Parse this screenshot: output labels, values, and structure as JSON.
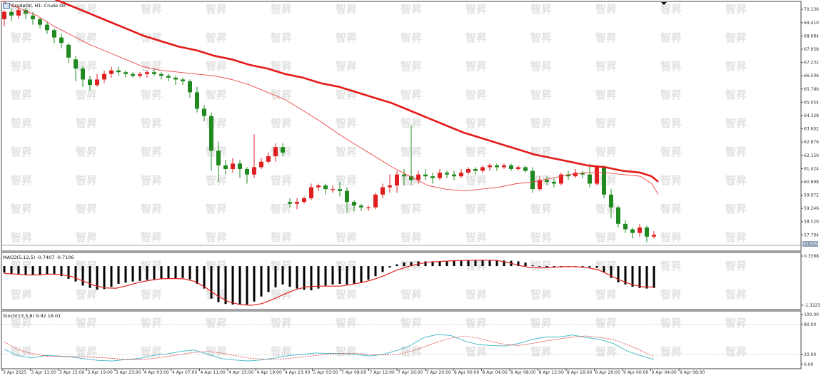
{
  "window": {
    "symbol_line": "CrudeOil, H1: Crude Oil",
    "macd_line": "MACD(5,12,5) -0.7407 -0.7106",
    "stoch_line": "Stoch(13,5,8) 9.92 16.01"
  },
  "watermark_text": "智昇",
  "colors": {
    "bull": "#e02020",
    "bear": "#208a20",
    "ma_slow": "#e41a1a",
    "ma_fast": "#ee4444",
    "macd_signal": "#e02020",
    "stoch_main": "#3cb8c8",
    "stoch_signal": "#e04040",
    "histogram": "#000000",
    "price_tag": "#8fa0b4"
  },
  "chart_data": [
    {
      "type": "candlestick",
      "title": "CrudeOil, H1: Crude Oil",
      "y_ticks": [
        "70.136",
        "69.410",
        "68.684",
        "67.958",
        "67.232",
        "66.506",
        "65.780",
        "65.054",
        "64.328",
        "63.602",
        "62.876",
        "62.150",
        "61.424",
        "60.698",
        "59.972",
        "59.246",
        "58.520",
        "57.794"
      ],
      "ylim": [
        57.3,
        70.3
      ],
      "current_price": "57.5?5",
      "x_ticks": [
        "3 Apr 2025",
        "3 Apr 11:00",
        "3 Apr 15:00",
        "3 Apr 19:00",
        "3 Apr 23:00",
        "4 Apr 03:00",
        "4 Apr 07:00",
        "4 Apr 11:00",
        "4 Apr 15:00",
        "4 Apr 19:00",
        "4 Apr 23:00",
        "5 Apr 03:00",
        "7 Apr 08:00",
        "7 Apr 12:00",
        "7 Apr 16:00",
        "7 Apr 20:00",
        "8 Apr 00:00",
        "8 Apr 04:00",
        "8 Apr 08:00",
        "8 Apr 12:00",
        "8 Apr 16:00",
        "8 Apr 20:00",
        "9 Apr 00:00",
        "9 Apr 04:00",
        "9 Apr 08:00"
      ],
      "candles": [
        [
          69.6,
          70.0,
          69.2,
          70.1
        ],
        [
          70.0,
          69.8,
          69.5,
          70.2
        ],
        [
          69.8,
          70.1,
          69.6,
          70.3
        ],
        [
          70.1,
          69.9,
          69.6,
          70.2
        ],
        [
          69.8,
          69.6,
          69.3,
          70.0
        ],
        [
          69.6,
          69.3,
          69.1,
          69.7
        ],
        [
          69.3,
          69.0,
          68.8,
          69.5
        ],
        [
          69.0,
          68.6,
          68.3,
          69.1
        ],
        [
          68.6,
          68.3,
          68.0,
          68.8
        ],
        [
          68.2,
          67.5,
          67.2,
          68.3
        ],
        [
          67.4,
          66.9,
          66.2,
          67.6
        ],
        [
          66.9,
          66.3,
          65.9,
          67.0
        ],
        [
          66.3,
          66.0,
          65.7,
          66.5
        ],
        [
          66.0,
          66.3,
          65.9,
          66.6
        ],
        [
          66.3,
          66.6,
          66.1,
          66.8
        ],
        [
          66.6,
          66.8,
          66.4,
          67.0
        ],
        [
          66.8,
          66.7,
          66.5,
          67.0
        ],
        [
          66.7,
          66.6,
          66.4,
          66.8
        ],
        [
          66.6,
          66.5,
          66.4,
          66.7
        ],
        [
          66.5,
          66.6,
          66.4,
          66.7
        ],
        [
          66.6,
          66.7,
          66.4,
          66.8
        ],
        [
          66.7,
          66.6,
          66.5,
          66.9
        ],
        [
          66.6,
          66.5,
          66.3,
          66.7
        ],
        [
          66.5,
          66.4,
          66.2,
          66.6
        ],
        [
          66.4,
          66.3,
          66.0,
          66.5
        ],
        [
          66.3,
          66.2,
          66.0,
          66.4
        ],
        [
          66.2,
          65.6,
          65.3,
          66.3
        ],
        [
          65.6,
          64.7,
          64.5,
          65.9
        ],
        [
          64.7,
          64.3,
          64.0,
          64.9
        ],
        [
          64.3,
          62.4,
          61.3,
          64.5
        ],
        [
          62.4,
          61.6,
          60.7,
          62.9
        ],
        [
          61.6,
          61.4,
          61.1,
          61.9
        ],
        [
          61.4,
          61.7,
          61.2,
          62.0
        ],
        [
          61.7,
          61.4,
          60.9,
          61.9
        ],
        [
          61.4,
          61.1,
          60.6,
          61.5
        ],
        [
          61.1,
          61.5,
          60.9,
          63.3
        ],
        [
          61.5,
          61.8,
          61.4,
          62.0
        ],
        [
          61.8,
          62.1,
          61.7,
          62.3
        ],
        [
          62.1,
          62.6,
          61.8,
          62.8
        ],
        [
          62.6,
          62.3,
          62.1,
          62.8
        ],
        [
          59.6,
          59.5,
          59.3,
          59.8
        ],
        [
          59.5,
          59.6,
          59.2,
          59.8
        ],
        [
          59.6,
          59.8,
          59.5,
          59.9
        ],
        [
          59.8,
          60.4,
          59.7,
          60.6
        ],
        [
          60.4,
          60.5,
          60.2,
          60.6
        ],
        [
          60.5,
          60.3,
          60.0,
          60.6
        ],
        [
          60.3,
          60.3,
          60.1,
          60.5
        ],
        [
          60.3,
          60.2,
          59.9,
          60.7
        ],
        [
          60.2,
          59.6,
          59.0,
          60.4
        ],
        [
          59.6,
          59.4,
          59.1,
          59.7
        ],
        [
          59.4,
          59.3,
          59.1,
          59.5
        ],
        [
          59.3,
          59.3,
          59.1,
          59.4
        ],
        [
          59.3,
          60.0,
          59.2,
          60.1
        ],
        [
          60.0,
          60.4,
          59.8,
          60.6
        ],
        [
          60.4,
          60.5,
          60.1,
          61.1
        ],
        [
          60.5,
          61.1,
          60.1,
          61.3
        ],
        [
          61.1,
          61.0,
          60.5,
          61.4
        ],
        [
          61.0,
          60.8,
          60.5,
          63.8
        ],
        [
          60.8,
          61.1,
          60.6,
          61.3
        ],
        [
          61.1,
          61.0,
          60.8,
          61.4
        ],
        [
          61.0,
          60.9,
          60.6,
          61.2
        ],
        [
          60.9,
          61.2,
          60.8,
          61.4
        ],
        [
          61.2,
          61.1,
          60.9,
          61.3
        ],
        [
          61.1,
          61.0,
          60.8,
          61.3
        ],
        [
          61.0,
          61.2,
          60.9,
          61.4
        ],
        [
          61.2,
          61.4,
          61.1,
          61.5
        ],
        [
          61.4,
          61.3,
          61.1,
          61.5
        ],
        [
          61.3,
          61.5,
          61.2,
          61.6
        ],
        [
          61.5,
          61.6,
          61.3,
          61.7
        ],
        [
          61.6,
          61.5,
          61.3,
          61.7
        ],
        [
          61.5,
          61.6,
          61.4,
          61.7
        ],
        [
          61.6,
          61.4,
          61.3,
          61.7
        ],
        [
          61.4,
          61.5,
          61.3,
          61.6
        ],
        [
          61.5,
          61.3,
          61.2,
          61.6
        ],
        [
          61.3,
          60.3,
          60.1,
          61.5
        ],
        [
          60.3,
          60.8,
          60.2,
          61.0
        ],
        [
          60.8,
          60.7,
          60.5,
          61.0
        ],
        [
          60.7,
          60.6,
          60.4,
          60.9
        ],
        [
          60.6,
          61.1,
          60.5,
          61.2
        ],
        [
          61.1,
          61.0,
          60.8,
          61.3
        ],
        [
          61.0,
          61.2,
          60.9,
          61.4
        ],
        [
          61.2,
          61.1,
          60.9,
          61.3
        ],
        [
          61.1,
          60.6,
          60.4,
          61.7
        ],
        [
          60.6,
          61.5,
          60.5,
          61.6
        ],
        [
          61.5,
          60.0,
          59.8,
          61.6
        ],
        [
          60.0,
          59.3,
          58.7,
          60.3
        ],
        [
          59.3,
          58.4,
          58.2,
          59.4
        ],
        [
          58.4,
          58.1,
          57.9,
          58.6
        ],
        [
          58.1,
          57.9,
          57.6,
          58.2
        ],
        [
          57.9,
          58.2,
          57.7,
          58.4
        ],
        [
          58.2,
          57.7,
          57.4,
          58.3
        ],
        [
          57.7,
          57.8,
          57.6,
          58.0
        ]
      ],
      "ma_slow": [
        71.6,
        71.3,
        71.0,
        70.7,
        70.3,
        69.9,
        69.5,
        69.1,
        68.7,
        68.4,
        68.1,
        67.9,
        67.6,
        67.4,
        67.1,
        66.9,
        66.6,
        66.4,
        66.1,
        65.9,
        65.6,
        65.3,
        65.0,
        64.6,
        64.2,
        63.8,
        63.4,
        63.1,
        62.8,
        62.5,
        62.2,
        62.0,
        61.8,
        61.6,
        61.5,
        61.3,
        61.2,
        61.0,
        60.7
      ],
      "ma_fast": [
        70.6,
        70.2,
        69.8,
        69.2,
        68.7,
        68.2,
        67.8,
        67.4,
        67.0,
        66.8,
        66.7,
        66.6,
        66.5,
        66.3,
        66.0,
        65.6,
        65.2,
        64.6,
        64.0,
        63.3,
        62.7,
        62.1,
        61.5,
        61.0,
        60.5,
        60.3,
        60.2,
        60.3,
        60.4,
        60.6,
        60.7,
        60.9,
        61.1,
        61.2,
        61.2,
        61.1,
        61.0,
        60.6,
        60.0
      ],
      "ma_x_fraction": [
        0.0,
        0.027,
        0.054,
        0.081,
        0.108,
        0.135,
        0.162,
        0.189,
        0.216,
        0.243,
        0.27,
        0.297,
        0.324,
        0.351,
        0.378,
        0.405,
        0.432,
        0.459,
        0.486,
        0.514,
        0.541,
        0.568,
        0.595,
        0.622,
        0.649,
        0.676,
        0.703,
        0.73,
        0.757,
        0.784,
        0.811,
        0.838,
        0.865,
        0.892,
        0.919,
        0.946,
        0.973,
        0.99,
        1.0
      ]
    },
    {
      "type": "bar",
      "title": "MACD(5,12,5) -0.7407 -0.7106",
      "y_ticks": [
        "0.3398",
        "-1.3223"
      ],
      "ylim": [
        -1.35,
        0.34
      ],
      "histogram": [
        -0.22,
        -0.25,
        -0.27,
        -0.3,
        -0.3,
        -0.31,
        -0.29,
        -0.28,
        -0.34,
        -0.43,
        -0.52,
        -0.66,
        -0.74,
        -0.8,
        -0.78,
        -0.7,
        -0.6,
        -0.56,
        -0.52,
        -0.5,
        -0.47,
        -0.45,
        -0.43,
        -0.42,
        -0.42,
        -0.4,
        -0.45,
        -0.6,
        -0.76,
        -1.1,
        -1.22,
        -1.28,
        -1.3,
        -1.3,
        -1.3,
        -1.2,
        -1.03,
        -0.88,
        -0.72,
        -0.62,
        -0.7,
        -0.76,
        -0.8,
        -0.82,
        -0.76,
        -0.66,
        -0.62,
        -0.6,
        -0.62,
        -0.6,
        -0.55,
        -0.46,
        -0.34,
        -0.2,
        -0.05,
        0.06,
        0.12,
        0.14,
        0.16,
        0.16,
        0.16,
        0.17,
        0.17,
        0.18,
        0.18,
        0.19,
        0.19,
        0.2,
        0.2,
        0.2,
        0.19,
        0.18,
        0.16,
        0.12,
        0.03,
        -0.02,
        -0.04,
        -0.05,
        -0.04,
        -0.02,
        -0.02,
        -0.03,
        -0.04,
        -0.06,
        -0.2,
        -0.4,
        -0.55,
        -0.62,
        -0.7,
        -0.74,
        -0.76,
        -0.74
      ],
      "signal": [
        -0.25,
        -0.27,
        -0.3,
        -0.3,
        -0.27,
        -0.28,
        -0.35,
        -0.5,
        -0.65,
        -0.74,
        -0.75,
        -0.66,
        -0.55,
        -0.48,
        -0.43,
        -0.42,
        -0.43,
        -0.52,
        -0.73,
        -1.0,
        -1.2,
        -1.3,
        -1.33,
        -1.27,
        -1.12,
        -0.95,
        -0.8,
        -0.7,
        -0.68,
        -0.68,
        -0.68,
        -0.62,
        -0.55,
        -0.45,
        -0.31,
        -0.14,
        -0.02,
        0.08,
        0.14,
        0.16,
        0.18,
        0.19,
        0.2,
        0.2,
        0.19,
        0.12,
        0.02,
        -0.05,
        -0.06,
        -0.04,
        -0.02,
        -0.02,
        -0.05,
        -0.12,
        -0.3,
        -0.48,
        -0.62,
        -0.7,
        -0.71
      ]
    },
    {
      "type": "line",
      "title": "Stoch(13,5,8) 9.92 16.01",
      "y_ticks": [
        "100.00",
        "80.00",
        "20.00",
        "0.00"
      ],
      "ylim": [
        0,
        100
      ],
      "levels": [
        80,
        20
      ],
      "series": [
        {
          "values": [
            30,
            18,
            13,
            18,
            17,
            15,
            11,
            8,
            7,
            10,
            12,
            18,
            21,
            26,
            29,
            21,
            12,
            9,
            7,
            9,
            13,
            18,
            20,
            23,
            22,
            22,
            20,
            17,
            20,
            28,
            38,
            54,
            60,
            58,
            47,
            40,
            38,
            37,
            42,
            50,
            55,
            55,
            59,
            54,
            50,
            42,
            27,
            18,
            9.9
          ]
        },
        {
          "values": [
            45,
            30,
            22,
            17,
            16,
            16,
            15,
            14,
            12,
            10,
            10,
            12,
            16,
            20,
            24,
            26,
            23,
            18,
            13,
            11,
            10,
            12,
            15,
            18,
            21,
            22,
            22,
            20,
            19,
            20,
            26,
            35,
            45,
            53,
            57,
            53,
            46,
            40,
            38,
            42,
            47,
            51,
            55,
            57,
            54,
            50,
            40,
            28,
            16
          ]
        }
      ]
    }
  ]
}
